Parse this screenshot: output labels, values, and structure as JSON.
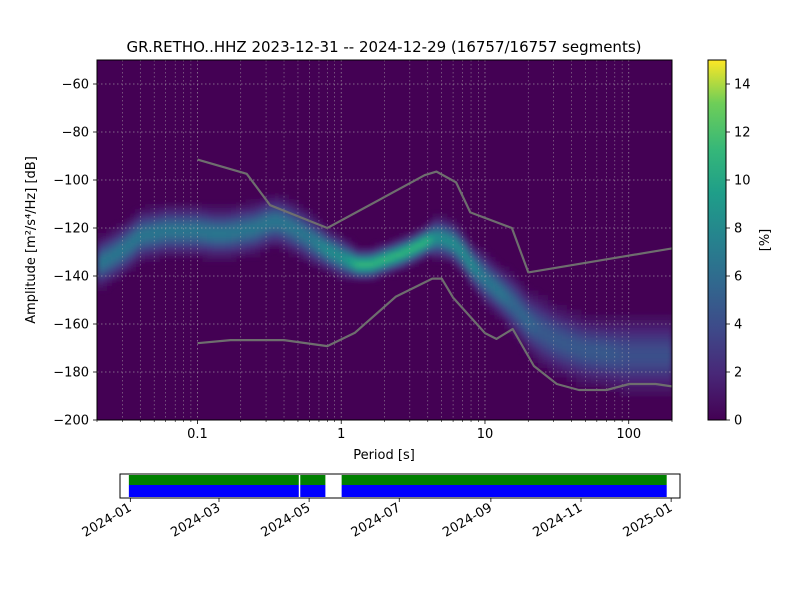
{
  "chart_data": [
    {
      "type": "heatmap",
      "title": "GR.RETHO..HHZ   2023-12-31 -- 2024-12-29  (16757/16757 segments)",
      "xlabel": "Period [s]",
      "ylabel": "Amplitude [m²/s⁴/Hz] [dB]",
      "x_scale": "log",
      "xlim": [
        0.02,
        200
      ],
      "ylim": [
        -200,
        -50
      ],
      "x_ticks": [
        0.1,
        1,
        10,
        100
      ],
      "x_tick_labels": [
        "0.1",
        "1",
        "10",
        "100"
      ],
      "y_ticks": [
        -200,
        -180,
        -160,
        -140,
        -120,
        -100,
        -80,
        -60
      ],
      "y_tick_labels": [
        "−200",
        "−180",
        "−160",
        "−140",
        "−120",
        "−100",
        "−80",
        "−60"
      ],
      "grid": true,
      "colormap": "viridis",
      "colorbar": {
        "label": "[%]",
        "range": [
          0,
          15
        ],
        "ticks": [
          0,
          2,
          4,
          6,
          8,
          10,
          12,
          14
        ],
        "tick_labels": [
          "0",
          "2",
          "4",
          "6",
          "8",
          "10",
          "12",
          "14"
        ]
      },
      "psd_mode": {
        "period": [
          0.02,
          0.025,
          0.03,
          0.035,
          0.04,
          0.05,
          0.06,
          0.08,
          0.1,
          0.13,
          0.16,
          0.2,
          0.25,
          0.3,
          0.35,
          0.4,
          0.5,
          0.6,
          0.8,
          1.0,
          1.3,
          1.6,
          2.0,
          2.5,
          3.0,
          3.5,
          4.0,
          4.5,
          5.0,
          6.0,
          7.0,
          8.0,
          10,
          13,
          16,
          20,
          25,
          30,
          40,
          50,
          70,
          100,
          150,
          200
        ],
        "amplitude_db": [
          -135,
          -132,
          -129,
          -126,
          -123,
          -122,
          -121,
          -121,
          -121,
          -122,
          -122,
          -121,
          -120,
          -118,
          -117,
          -118,
          -121,
          -124,
          -129,
          -132,
          -135,
          -135,
          -133,
          -131,
          -129,
          -127,
          -125,
          -124,
          -124,
          -126,
          -130,
          -135,
          -141,
          -147,
          -152,
          -159,
          -163,
          -166,
          -169,
          -171,
          -172,
          -173,
          -173,
          -173
        ],
        "spread_db": [
          5,
          5,
          5,
          5,
          5,
          5,
          5,
          5,
          5,
          5,
          5,
          5,
          5,
          5,
          5,
          5,
          5,
          5,
          4,
          4,
          3,
          3,
          3,
          3,
          3,
          3,
          3,
          4,
          4,
          4,
          4,
          4,
          5,
          5,
          6,
          6,
          7,
          7,
          7,
          7,
          7,
          8,
          8,
          8
        ]
      },
      "reference_models": [
        {
          "period": [
            0.1,
            0.17,
            0.4,
            0.8,
            1.24,
            2.4,
            4.3,
            5.0,
            6.0,
            10,
            12,
            15.6,
            21.9,
            31.6,
            45,
            70,
            101,
            154,
            200
          ],
          "amplitude_db": [
            -168,
            -166.7,
            -166.7,
            -169.2,
            -163.7,
            -148.6,
            -141.1,
            -141.1,
            -149,
            -163.8,
            -166.2,
            -162.1,
            -177.5,
            -185,
            -187.5,
            -187.5,
            -185,
            -185,
            -186
          ]
        },
        {
          "period": [
            0.1,
            0.22,
            0.32,
            0.8,
            3.8,
            4.6,
            6.3,
            7.9,
            15.4,
            20,
            200
          ],
          "amplitude_db": [
            -91.5,
            -97.4,
            -110.5,
            -120,
            -98,
            -96.5,
            -101,
            -113.5,
            -120,
            -138.5,
            -128.5
          ]
        }
      ]
    },
    {
      "type": "timeline",
      "x_tick_labels": [
        "2024-01",
        "2024-03",
        "2024-05",
        "2024-07",
        "2024-09",
        "2024-11",
        "2025-01"
      ],
      "x_tick_dates": [
        "2024-01-01",
        "2024-03-01",
        "2024-05-01",
        "2024-07-01",
        "2024-09-01",
        "2024-11-01",
        "2025-01-01"
      ],
      "xlim": [
        "2023-12-25",
        "2025-01-07"
      ],
      "data_coverage": [
        {
          "start": "2023-12-31",
          "end": "2024-04-24"
        },
        {
          "start": "2024-04-25",
          "end": "2024-05-12"
        },
        {
          "start": "2024-05-23",
          "end": "2024-12-29"
        }
      ],
      "colors": {
        "used": "#008000",
        "data": "#0000ff"
      }
    }
  ]
}
